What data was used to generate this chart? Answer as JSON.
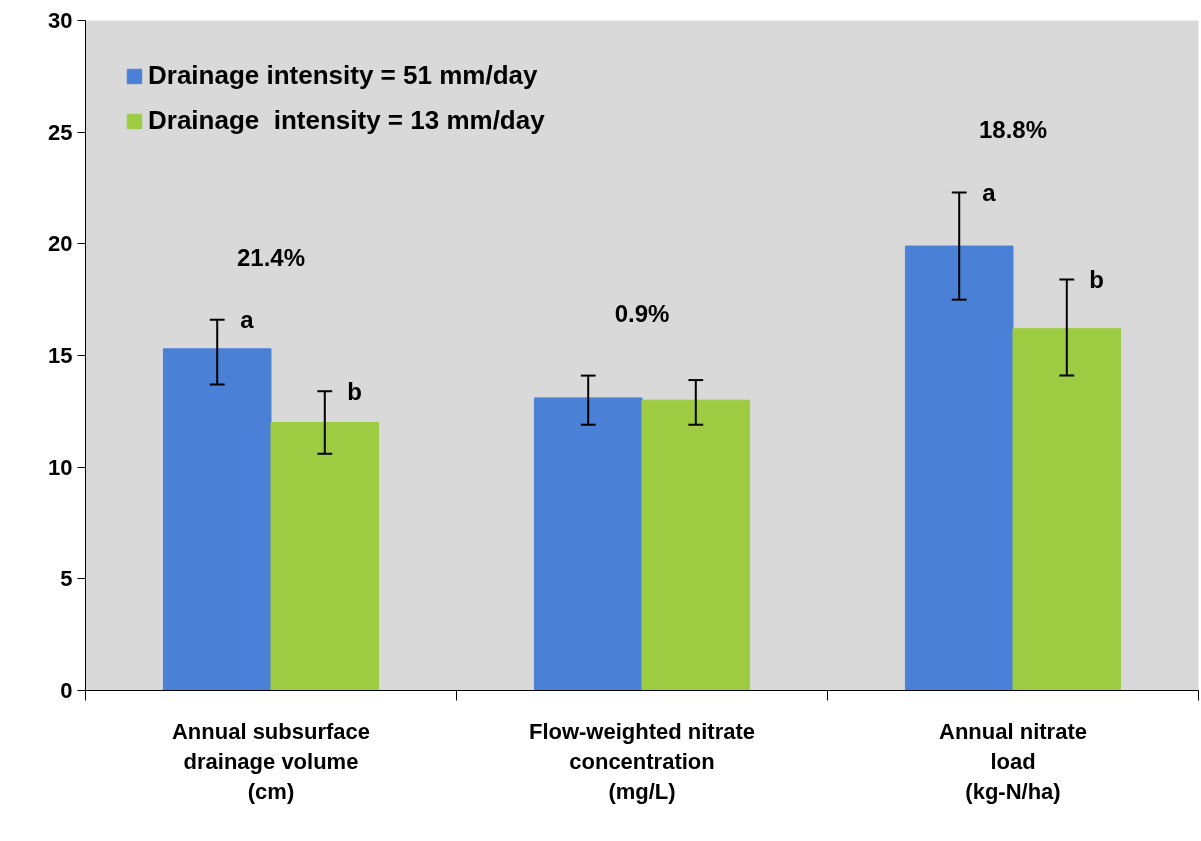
{
  "chart_data": {
    "type": "bar",
    "categories": [
      "Annual subsurface\ndrainage volume\n(cm)",
      "Flow-weighted nitrate\nconcentration\n(mg/L)",
      "Annual nitrate\nload\n(kg-N/ha)"
    ],
    "series": [
      {
        "name": "Drainage intensity = 51 mm/day",
        "color": "#4a80d6",
        "values": [
          15.3,
          13.1,
          19.9
        ],
        "errors": [
          [
            13.7,
            16.6
          ],
          [
            11.9,
            14.1
          ],
          [
            17.5,
            22.3
          ]
        ],
        "value_labels": [
          "a",
          null,
          "a"
        ]
      },
      {
        "name": "Drainage  intensity = 13 mm/day",
        "color": "#9dcc42",
        "values": [
          12.0,
          13.0,
          16.2
        ],
        "errors": [
          [
            10.6,
            13.4
          ],
          [
            11.9,
            13.9
          ],
          [
            14.1,
            18.4
          ]
        ],
        "value_labels": [
          "b",
          null,
          "b"
        ]
      }
    ],
    "annotations": [
      "21.4%",
      "0.9%",
      "18.8%"
    ],
    "ylim": [
      0,
      30
    ],
    "yticks": [
      0,
      5,
      10,
      15,
      20,
      25,
      30
    ],
    "grid": false,
    "legend": "top left"
  }
}
